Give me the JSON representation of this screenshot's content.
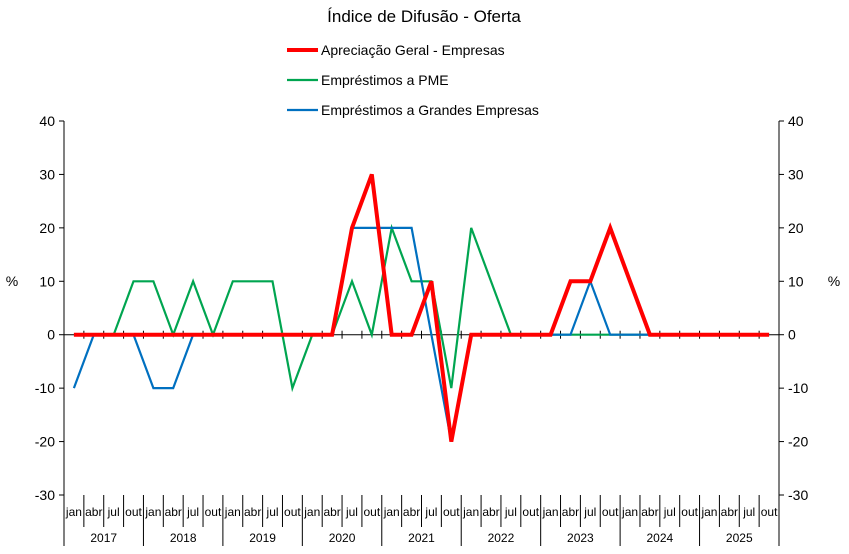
{
  "chart_data": {
    "type": "line",
    "title": "Índice de Difusão - Oferta",
    "ylabel_left": "%",
    "ylabel_right": "%",
    "ylim": [
      -30,
      40
    ],
    "yticks": [
      -30,
      -20,
      -10,
      0,
      10,
      20,
      30,
      40
    ],
    "month_labels": [
      "jan",
      "abr",
      "jul",
      "out"
    ],
    "years": [
      "2017",
      "2018",
      "2019",
      "2020",
      "2021",
      "2022",
      "2023",
      "2024",
      "2025"
    ],
    "x": [
      "jan 2017",
      "abr 2017",
      "jul 2017",
      "out 2017",
      "jan 2018",
      "abr 2018",
      "jul 2018",
      "out 2018",
      "jan 2019",
      "abr 2019",
      "jul 2019",
      "out 2019",
      "jan 2020",
      "abr 2020",
      "jul 2020",
      "out 2020",
      "jan 2021",
      "abr 2021",
      "jul 2021",
      "out 2021",
      "jan 2022",
      "abr 2022",
      "jul 2022",
      "out 2022",
      "jan 2023",
      "abr 2023",
      "jul 2023",
      "out 2023",
      "jan 2024",
      "abr 2024",
      "jul 2024",
      "out 2024",
      "jan 2025",
      "abr 2025",
      "jul 2025",
      "out 2025"
    ],
    "grid": false,
    "legend_position": "top",
    "series": [
      {
        "name": "Apreciação Geral - Empresas",
        "color": "#ff0000",
        "values": [
          0,
          0,
          0,
          0,
          0,
          0,
          0,
          0,
          0,
          0,
          0,
          0,
          0,
          0,
          20,
          30,
          0,
          0,
          10,
          -20,
          0,
          0,
          0,
          0,
          0,
          10,
          10,
          20,
          10,
          0,
          0,
          0,
          0,
          0,
          0,
          0
        ]
      },
      {
        "name": "Empréstimos a PME",
        "color": "#00a550",
        "values": [
          0,
          0,
          0,
          10,
          10,
          0,
          10,
          0,
          10,
          10,
          10,
          -10,
          0,
          0,
          10,
          0,
          20,
          10,
          10,
          -10,
          20,
          10,
          0,
          0,
          0,
          0,
          0,
          0,
          0,
          0,
          0,
          0,
          0,
          0,
          0,
          0
        ]
      },
      {
        "name": "Empréstimos a Grandes Empresas",
        "color": "#0070c0",
        "values": [
          -10,
          0,
          0,
          0,
          -10,
          -10,
          0,
          0,
          0,
          0,
          0,
          0,
          0,
          0,
          20,
          20,
          20,
          20,
          0,
          -20,
          0,
          0,
          0,
          0,
          0,
          0,
          10,
          0,
          0,
          0,
          0,
          0,
          0,
          0,
          0,
          0
        ]
      }
    ]
  }
}
